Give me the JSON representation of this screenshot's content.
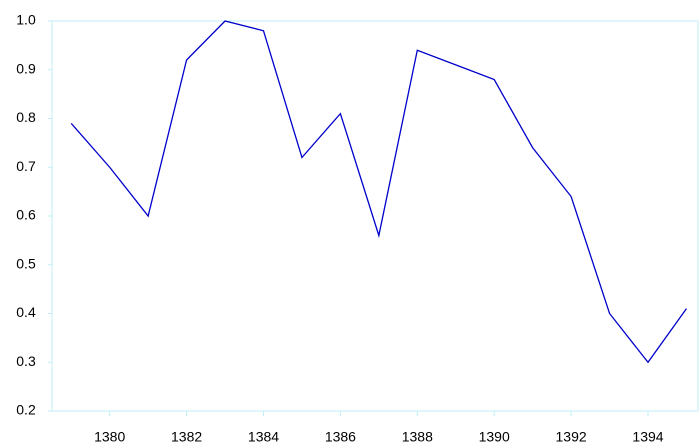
{
  "chart_data": {
    "type": "line",
    "x": [
      1379,
      1380,
      1381,
      1382,
      1383,
      1384,
      1385,
      1386,
      1387,
      1388,
      1389,
      1390,
      1391,
      1392,
      1393,
      1394,
      1395
    ],
    "values": [
      0.79,
      0.7,
      0.6,
      0.92,
      1.0,
      0.98,
      0.72,
      0.81,
      0.56,
      0.94,
      0.91,
      0.88,
      0.74,
      0.64,
      0.4,
      0.3,
      0.41
    ],
    "color": "#0000cc",
    "xlim": [
      1378.5,
      1395.3
    ],
    "xticks": [
      1380,
      1382,
      1384,
      1386,
      1388,
      1390,
      1392,
      1394
    ],
    "ylim": [
      0.2,
      1.0
    ],
    "yticks": [
      0.2,
      0.3,
      0.4,
      0.5,
      0.6,
      0.7,
      0.8,
      0.9,
      {
        "value": 1,
        "label": "1.0"
      }
    ]
  }
}
